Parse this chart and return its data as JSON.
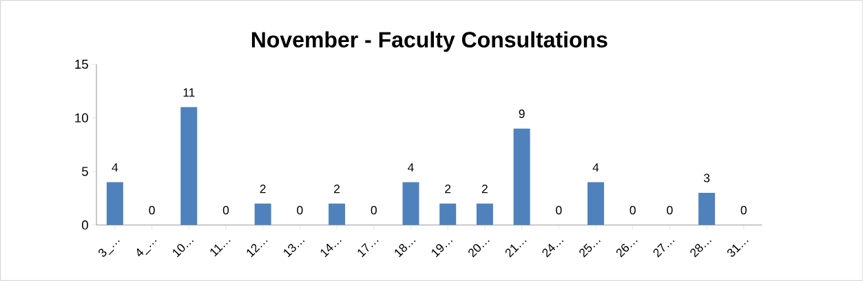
{
  "chart_data": {
    "type": "bar",
    "title": "November - Faculty Consultations",
    "categories": [
      "3_…",
      "4_…",
      "10…",
      "11…",
      "12…",
      "13…",
      "14…",
      "17…",
      "18…",
      "19…",
      "20…",
      "21…",
      "24…",
      "25…",
      "26…",
      "27…",
      "28…",
      "31…"
    ],
    "values": [
      4,
      0,
      11,
      0,
      2,
      0,
      2,
      0,
      4,
      2,
      2,
      9,
      0,
      4,
      0,
      0,
      3,
      0
    ],
    "color": "#4f81bd",
    "ylim": [
      0,
      15
    ],
    "yticks": [
      0,
      5,
      10,
      15
    ],
    "data_labels": true,
    "grid": false
  }
}
